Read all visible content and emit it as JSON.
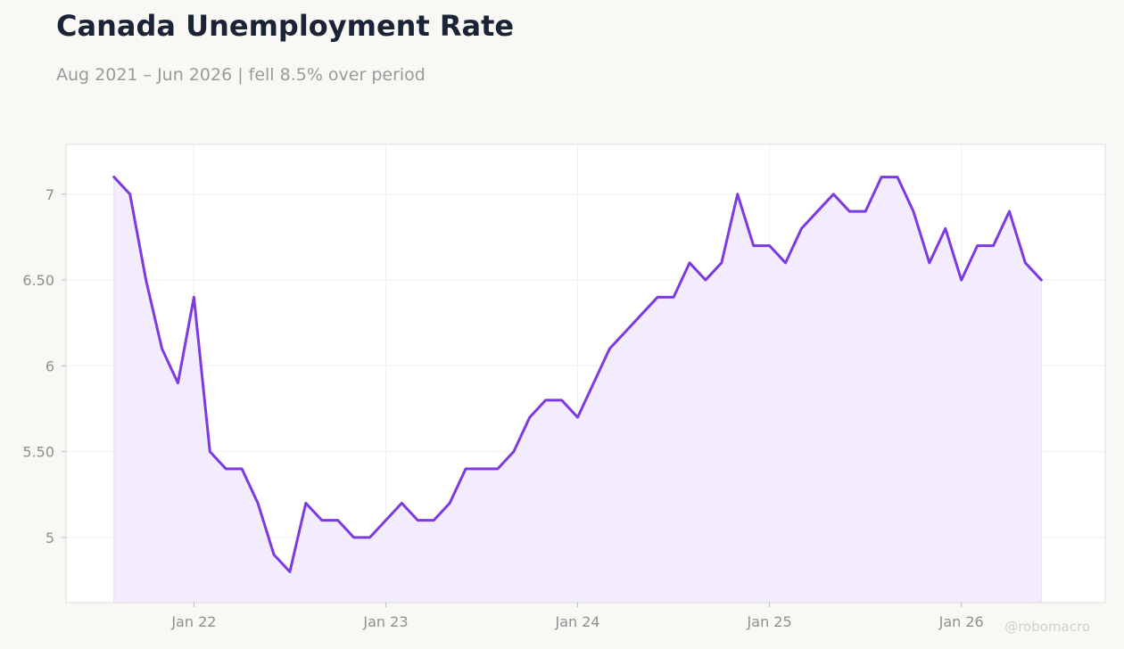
{
  "header": {
    "title": "Canada Unemployment Rate",
    "subtitle": "Aug 2021 – Jun 2026 | fell 8.5% over period"
  },
  "watermark": "@robomacro",
  "colors": {
    "line": "#7c3ae0",
    "area": "#f2ecfd",
    "grid": "#efefef",
    "frame": "#dcdcdc",
    "background": "#f9f8f5",
    "plot_background": "#ffffff"
  },
  "chart_data": {
    "type": "area",
    "title": "Canada Unemployment Rate",
    "subtitle": "Aug 2021 – Jun 2026 | fell 8.5% over period",
    "xlabel": "",
    "ylabel": "",
    "grid": true,
    "legend": "none",
    "ylim": [
      4.62,
      7.29
    ],
    "xlim": [
      "2021-05",
      "2026-10"
    ],
    "x_ticks": [
      {
        "date": "2022-01",
        "label": "Jan 22"
      },
      {
        "date": "2023-01",
        "label": "Jan 23"
      },
      {
        "date": "2024-01",
        "label": "Jan 24"
      },
      {
        "date": "2025-01",
        "label": "Jan 25"
      },
      {
        "date": "2026-01",
        "label": "Jan 26"
      }
    ],
    "y_ticks": [
      {
        "value": 5,
        "label": "5"
      },
      {
        "value": 5.5,
        "label": "5.50"
      },
      {
        "value": 6,
        "label": "6"
      },
      {
        "value": 6.5,
        "label": "6.50"
      },
      {
        "value": 7,
        "label": "7"
      }
    ],
    "series": [
      {
        "x": [
          "2021-08",
          "2021-09",
          "2021-10",
          "2021-11",
          "2021-12",
          "2022-01",
          "2022-02",
          "2022-03",
          "2022-04",
          "2022-05",
          "2022-06",
          "2022-07",
          "2022-08",
          "2022-09",
          "2022-10",
          "2022-11",
          "2022-12",
          "2023-01",
          "2023-02",
          "2023-03",
          "2023-04",
          "2023-05",
          "2023-06",
          "2023-07",
          "2023-08",
          "2023-09",
          "2023-10",
          "2023-11",
          "2023-12",
          "2024-01",
          "2024-02",
          "2024-03",
          "2024-04",
          "2024-05",
          "2024-06",
          "2024-07",
          "2024-08",
          "2024-09",
          "2024-10",
          "2024-11",
          "2024-12",
          "2025-01",
          "2025-02",
          "2025-03",
          "2025-04",
          "2025-05",
          "2025-06",
          "2025-07",
          "2025-08",
          "2025-09",
          "2025-10",
          "2025-11",
          "2025-12",
          "2026-01",
          "2026-02",
          "2026-03",
          "2026-04",
          "2026-05",
          "2026-06"
        ],
        "values": [
          7.1,
          7.0,
          6.5,
          6.1,
          5.9,
          6.4,
          5.5,
          5.4,
          5.4,
          5.2,
          4.9,
          4.8,
          5.2,
          5.1,
          5.1,
          5.0,
          5.0,
          5.1,
          5.2,
          5.1,
          5.1,
          5.2,
          5.4,
          5.4,
          5.4,
          5.5,
          5.7,
          5.8,
          5.8,
          5.7,
          5.9,
          6.1,
          6.2,
          6.3,
          6.4,
          6.4,
          6.6,
          6.5,
          6.6,
          7.0,
          6.7,
          6.7,
          6.6,
          6.8,
          6.9,
          7.0,
          6.9,
          6.9,
          7.1,
          7.1,
          6.9,
          6.6,
          6.8,
          6.5,
          6.7,
          6.7,
          6.9,
          6.6,
          6.5
        ]
      }
    ]
  }
}
